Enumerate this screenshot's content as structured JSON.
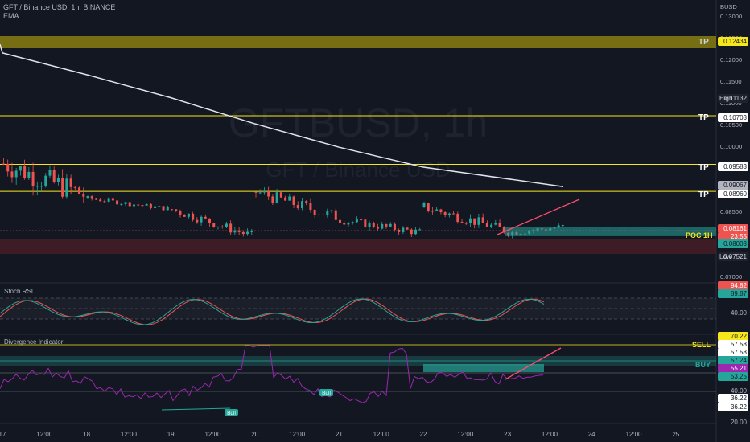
{
  "header": {
    "symbol_line": "GFT / Binance USD, 1h, BINANCE",
    "indicator": "EMA"
  },
  "watermark": {
    "ticker": "GFTBUSD, 1h",
    "name": "GFT / Binance USD"
  },
  "currency": "BUSD",
  "price_axis": {
    "ticks": [
      "0.13000",
      "0.12500",
      "0.12000",
      "0.11500",
      "0.11000",
      "0.10500",
      "0.10000",
      "0.09500",
      "0.09000",
      "0.08500",
      "0.08000",
      "0.07500",
      "0.07000"
    ],
    "high_label": "High",
    "high_value": "0.11132",
    "low_label": "Low",
    "low_value": "0.07521",
    "tp_values": [
      "0.12434",
      "0.10703",
      "0.09583",
      "0.08960"
    ],
    "ema_value": "0.09067",
    "last_price": "0.08161",
    "countdown": "23:55",
    "poc_value": "0.08003"
  },
  "annotations": {
    "tp_label": "TP",
    "poc_label": "POC 1H",
    "sell_label": "SELL",
    "buy_label": "BUY",
    "bull_label": "Bull"
  },
  "stoch_rsi": {
    "title": "Stoch RSI",
    "k_value": "94.82",
    "d_value": "89.87",
    "tick": "40.00"
  },
  "divergence": {
    "title": "Divergence Indicator",
    "values": [
      "70.22",
      "57.58",
      "57.58",
      "57.24",
      "55.21",
      "53.25",
      "40.00",
      "36.22",
      "36.22",
      "20.00"
    ]
  },
  "time_axis": [
    "17",
    "12:00",
    "18",
    "12:00",
    "19",
    "12:00",
    "20",
    "12:00",
    "21",
    "12:00",
    "22",
    "12:00",
    "23",
    "12:00",
    "24",
    "12:00",
    "25"
  ],
  "colors": {
    "background": "#131722",
    "up": "#26a69a",
    "down": "#ef5350",
    "tp_line": "#f5e71b",
    "ema": "#e0e3eb",
    "k_line": "#26a69a",
    "d_line": "#ef5350",
    "div_line": "#9c27b0",
    "poc": "#26a69a"
  },
  "chart_data": {
    "type": "candlestick",
    "series": [
      {
        "name": "EMA",
        "x": [
          "17",
          "18",
          "19",
          "20",
          "21",
          "22",
          "23"
        ],
        "values": [
          0.1215,
          0.1165,
          0.1112,
          0.1052,
          0.0998,
          0.0952,
          0.0907
        ]
      }
    ],
    "x": [
      "17",
      "18",
      "19",
      "20",
      "21",
      "22",
      "23"
    ],
    "open": [
      0.096,
      0.088,
      0.0855,
      0.0895,
      0.083,
      0.086,
      0.08
    ],
    "high": [
      0.1113,
      0.0905,
      0.089,
      0.0935,
      0.0865,
      0.093,
      0.0835
    ],
    "low": [
      0.08,
      0.0845,
      0.077,
      0.0775,
      0.076,
      0.0795,
      0.0752
    ],
    "close": [
      0.0885,
      0.0855,
      0.079,
      0.0835,
      0.08,
      0.0805,
      0.0816
    ],
    "ylim": [
      0.07,
      0.13
    ]
  }
}
